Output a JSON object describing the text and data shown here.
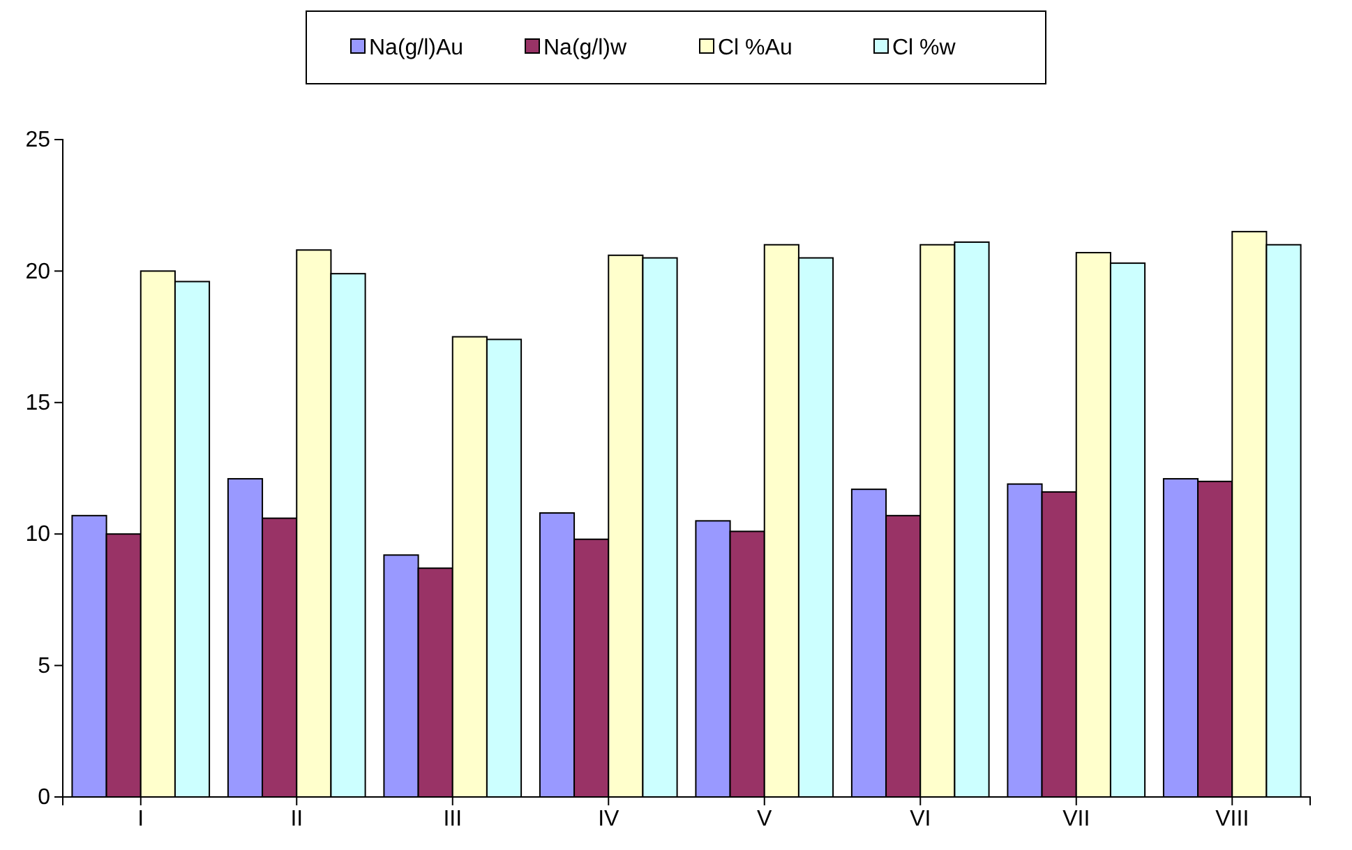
{
  "chart_data": {
    "type": "bar",
    "categories": [
      "I",
      "II",
      "III",
      "IV",
      "V",
      "VI",
      "VII",
      "VIII"
    ],
    "series": [
      {
        "name": "Na(g/l)Au",
        "color": "#9999ff",
        "values": [
          10.7,
          12.1,
          9.2,
          10.8,
          10.5,
          11.7,
          11.9,
          12.1
        ]
      },
      {
        "name": "Na(g/l)w",
        "color": "#993366",
        "values": [
          10.0,
          10.6,
          8.7,
          9.8,
          10.1,
          10.7,
          11.6,
          12.0
        ]
      },
      {
        "name": "Cl %Au",
        "color": "#ffffcc",
        "values": [
          20.0,
          20.8,
          17.5,
          20.6,
          21.0,
          21.0,
          20.7,
          21.5
        ]
      },
      {
        "name": "Cl %w",
        "color": "#ccffff",
        "values": [
          19.6,
          19.9,
          17.4,
          20.5,
          20.5,
          21.1,
          20.3,
          21.0
        ]
      }
    ],
    "ylim": [
      0,
      25
    ],
    "yticks": [
      0,
      5,
      10,
      15,
      20,
      25
    ],
    "grid": false,
    "legend": "top"
  }
}
